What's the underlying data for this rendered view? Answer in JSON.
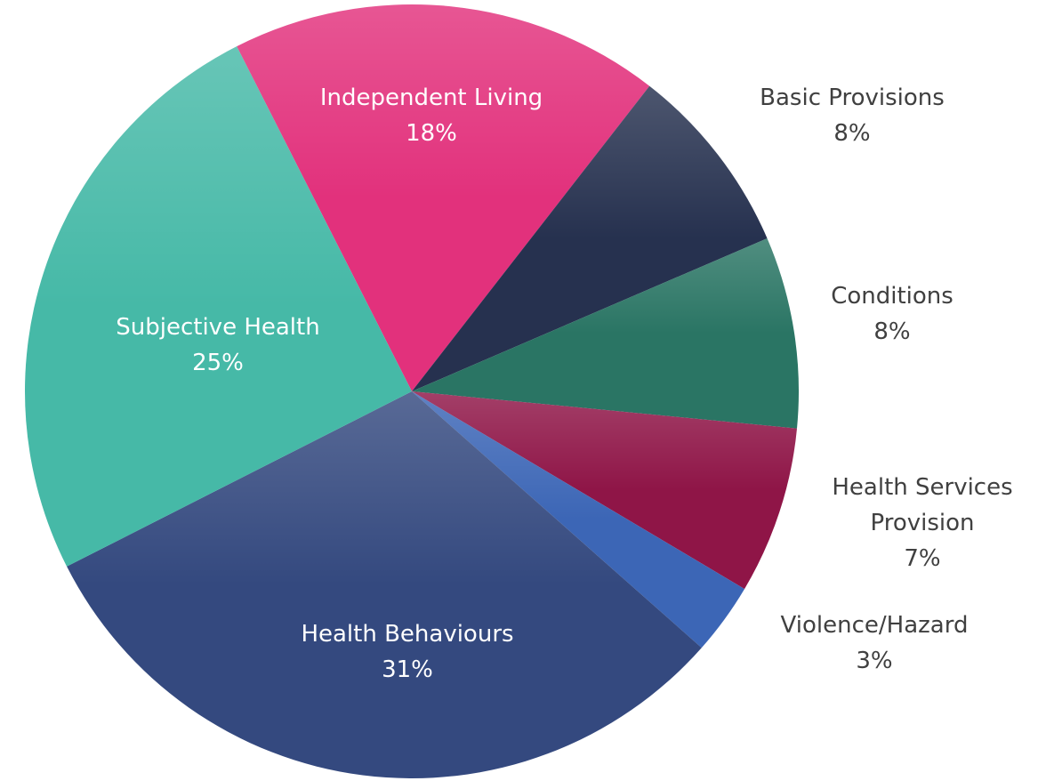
{
  "chart_data": {
    "type": "pie",
    "categories": [
      "Independent Living",
      "Basic Provisions",
      "Conditions",
      "Health Services Provision",
      "Violence/Hazard",
      "Health Behaviours",
      "Subjective Health"
    ],
    "values": [
      18,
      8,
      8,
      7,
      3,
      31,
      25
    ],
    "value_labels": [
      "18%",
      "8%",
      "8%",
      "7%",
      "3%",
      "31%",
      "25%"
    ],
    "colors": [
      "#e2317c",
      "#26314f",
      "#2a7564",
      "#8f1547",
      "#3c66b6",
      "#34497f",
      "#46b9a7"
    ]
  }
}
